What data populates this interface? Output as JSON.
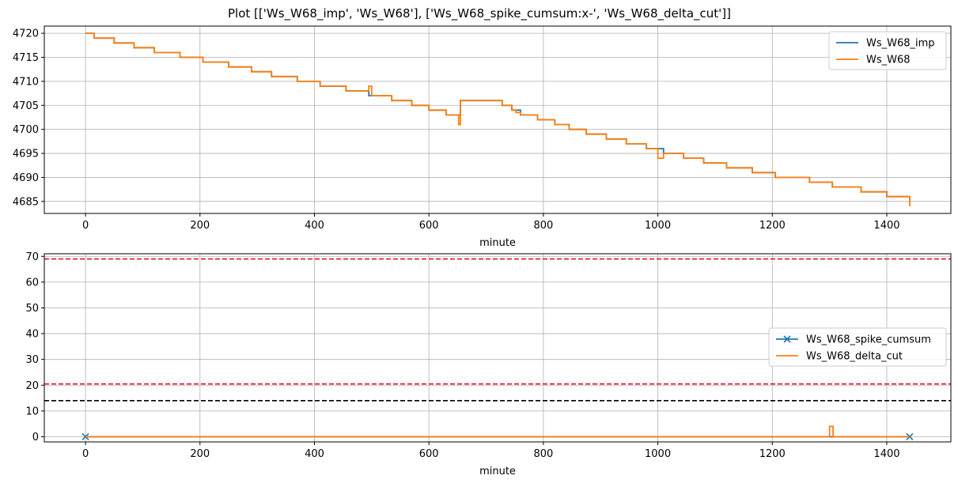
{
  "title": "Plot [['Ws_W68_imp', 'Ws_W68'], ['Ws_W68_spike_cumsum:x-', 'Ws_W68_delta_cut']]",
  "colors": {
    "blue": "#1f77b4",
    "orange": "#ff7f0e",
    "red": "#e8112d",
    "black": "#000000",
    "grid": "#b0b0b0"
  },
  "chart_data": [
    {
      "type": "line",
      "xlabel": "minute",
      "ylabel": "",
      "xlim": [
        -72,
        1512
      ],
      "ylim": [
        4682.5,
        4721.5
      ],
      "xticks": [
        0,
        200,
        400,
        600,
        800,
        1000,
        1200,
        1400
      ],
      "yticks": [
        4685,
        4690,
        4695,
        4700,
        4705,
        4710,
        4715,
        4720
      ],
      "grid": true,
      "legend_position": "upper right",
      "series": [
        {
          "name": "Ws_W68_imp",
          "color": "#1f77b4",
          "step": true,
          "x": [
            0,
            15,
            50,
            85,
            120,
            165,
            205,
            250,
            290,
            325,
            370,
            410,
            455,
            495,
            535,
            570,
            600,
            630,
            655,
            685,
            728,
            745,
            760,
            790,
            820,
            845,
            875,
            910,
            945,
            980,
            1010,
            1045,
            1080,
            1120,
            1165,
            1205,
            1265,
            1305,
            1355,
            1400,
            1440
          ],
          "y": [
            4720,
            4719,
            4718,
            4717,
            4716,
            4715,
            4714,
            4713,
            4712,
            4711,
            4710,
            4709,
            4708,
            4707,
            4706,
            4705,
            4704,
            4703,
            4706,
            4706,
            4705,
            4704,
            4703,
            4702,
            4701,
            4700,
            4699,
            4698,
            4697,
            4696,
            4695,
            4694,
            4693,
            4692,
            4691,
            4690,
            4689,
            4688,
            4687,
            4686,
            4685
          ]
        },
        {
          "name": "Ws_W68",
          "color": "#ff7f0e",
          "step": true,
          "x": [
            0,
            15,
            50,
            85,
            120,
            165,
            205,
            250,
            290,
            325,
            370,
            410,
            455,
            495,
            500,
            535,
            570,
            600,
            630,
            652,
            655,
            685,
            728,
            745,
            752,
            760,
            790,
            820,
            845,
            875,
            910,
            945,
            980,
            1000,
            1010,
            1045,
            1080,
            1120,
            1165,
            1205,
            1265,
            1305,
            1355,
            1400,
            1440
          ],
          "y": [
            4720,
            4719,
            4718,
            4717,
            4716,
            4715,
            4714,
            4713,
            4712,
            4711,
            4710,
            4709,
            4708,
            4709,
            4707,
            4706,
            4705,
            4704,
            4703,
            4701,
            4706,
            4706,
            4705,
            4704,
            4703.5,
            4703,
            4702,
            4701,
            4700,
            4699,
            4698,
            4697,
            4696,
            4694,
            4695,
            4694,
            4693,
            4692,
            4691,
            4690,
            4689,
            4688,
            4687,
            4686,
            4684
          ]
        }
      ]
    },
    {
      "type": "line",
      "xlabel": "minute",
      "ylabel": "",
      "xlim": [
        -72,
        1512
      ],
      "ylim": [
        -2,
        71
      ],
      "xticks": [
        0,
        200,
        400,
        600,
        800,
        1000,
        1200,
        1400
      ],
      "yticks": [
        0,
        10,
        20,
        30,
        40,
        50,
        60,
        70
      ],
      "grid": true,
      "legend_position": "center right",
      "series": [
        {
          "name": "Ws_W68_spike_cumsum",
          "color": "#1f77b4",
          "marker": "x",
          "x": [
            0,
            1440
          ],
          "y": [
            0,
            0
          ]
        },
        {
          "name": "Ws_W68_delta_cut",
          "color": "#ff7f0e",
          "step": true,
          "x": [
            0,
            1300,
            1306,
            1440
          ],
          "y": [
            0,
            4,
            0,
            0
          ]
        }
      ],
      "hlines": [
        {
          "y": 69,
          "color": "#e8112d",
          "style": "dashed"
        },
        {
          "y": 20.5,
          "color": "#e8112d",
          "style": "dashed"
        },
        {
          "y": 14,
          "color": "#000000",
          "style": "dashed"
        }
      ]
    }
  ]
}
